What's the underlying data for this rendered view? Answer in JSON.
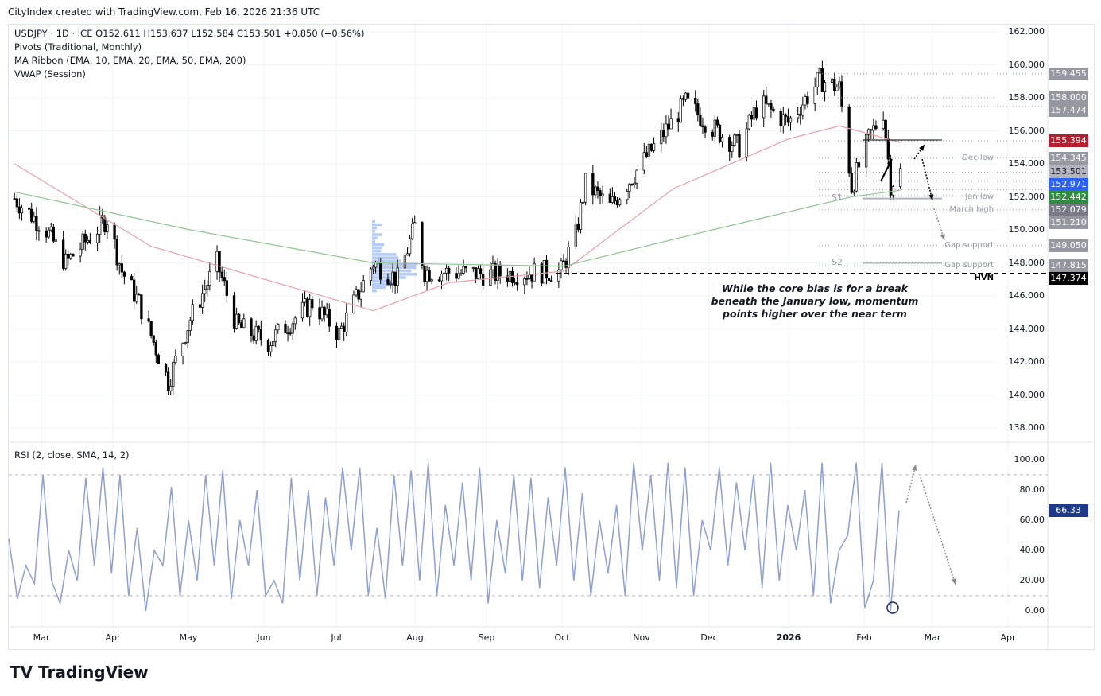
{
  "credit": "CityIndex created with TradingView.com, Feb 16, 2026 21:36 UTC",
  "legend": {
    "symbol_line": "USDJPY · 1D · ICE  O152.611  H153.637  L152.584  C153.501  +0.850 (+0.56%)",
    "pivots": "Pivots (Traditional, Monthly)",
    "ma_ribbon": "MA Ribbon (EMA, 10, EMA, 20, EMA, 50, EMA, 200)",
    "vwap": "VWAP (Session)",
    "rsi": "RSI (2, close, SMA, 14, 2)"
  },
  "annotation": "While the core bias is for a break beneath the January low, momentum points higher over the near term",
  "logo": "TradingView",
  "chart_data": [
    {
      "type": "candlestick",
      "symbol": "USDJPY",
      "interval": "1D",
      "ylim": [
        137,
        163
      ],
      "y_ticks": [
        "162.000",
        "160.000",
        "158.000",
        "156.000",
        "154.000",
        "152.000",
        "150.000",
        "148.000",
        "146.000",
        "144.000",
        "142.000",
        "140.000",
        "138.000"
      ],
      "x_ticks": [
        "Mar",
        "Apr",
        "May",
        "Jun",
        "Jul",
        "Aug",
        "Sep",
        "Oct",
        "Nov",
        "Dec",
        "2026",
        "Feb",
        "Mar",
        "Apr"
      ],
      "close_path": [
        [
          "2025-02-18",
          151.9
        ],
        [
          "2025-03-03",
          150.0
        ],
        [
          "2025-03-11",
          148.0
        ],
        [
          "2025-03-28",
          150.7
        ],
        [
          "2025-04-03",
          147.5
        ],
        [
          "2025-04-10",
          145.6
        ],
        [
          "2025-04-22",
          140.8
        ],
        [
          "2025-05-01",
          144.6
        ],
        [
          "2025-05-12",
          148.0
        ],
        [
          "2025-05-20",
          144.2
        ],
        [
          "2025-06-02",
          143.2
        ],
        [
          "2025-06-20",
          145.6
        ],
        [
          "2025-07-01",
          143.7
        ],
        [
          "2025-07-15",
          148.0
        ],
        [
          "2025-07-25",
          147.0
        ],
        [
          "2025-08-01",
          150.2
        ],
        [
          "2025-08-05",
          147.5
        ],
        [
          "2025-09-01",
          147.3
        ],
        [
          "2025-09-30",
          147.5
        ],
        [
          "2025-10-06",
          149.7
        ],
        [
          "2025-10-10",
          152.8
        ],
        [
          "2025-10-20",
          151.4
        ],
        [
          "2025-11-01",
          153.8
        ],
        [
          "2025-11-20",
          157.7
        ],
        [
          "2025-12-01",
          156.2
        ],
        [
          "2025-12-12",
          155.0
        ],
        [
          "2025-12-20",
          157.7
        ],
        [
          "2026-01-01",
          156.5
        ],
        [
          "2026-01-14",
          159.1
        ],
        [
          "2026-01-22",
          158.6
        ],
        [
          "2026-01-27",
          152.6
        ],
        [
          "2026-02-03",
          155.5
        ],
        [
          "2026-02-09",
          157.2
        ],
        [
          "2026-02-12",
          152.8
        ],
        [
          "2026-02-16",
          153.5
        ]
      ],
      "ema_red": [
        [
          "2025-02-18",
          154.0
        ],
        [
          "2025-04-15",
          149.0
        ],
        [
          "2025-07-15",
          145.1
        ],
        [
          "2025-08-15",
          146.8
        ],
        [
          "2025-10-01",
          147.5
        ],
        [
          "2025-11-15",
          152.5
        ],
        [
          "2026-01-01",
          155.5
        ],
        [
          "2026-01-22",
          156.3
        ],
        [
          "2026-02-16",
          155.3
        ]
      ],
      "ema_green": [
        [
          "2025-02-18",
          152.3
        ],
        [
          "2025-05-01",
          150.0
        ],
        [
          "2025-07-15",
          148.0
        ],
        [
          "2025-10-01",
          147.8
        ],
        [
          "2025-12-01",
          150.0
        ],
        [
          "2026-01-27",
          152.0
        ],
        [
          "2026-02-16",
          152.4
        ]
      ],
      "levels": [
        {
          "label": "",
          "value": "159.455"
        },
        {
          "label": "",
          "value": "158.000"
        },
        {
          "label": "",
          "value": "157.474"
        },
        {
          "label": "",
          "value": "155.394",
          "color": "#b2202f"
        },
        {
          "label": "Dec low",
          "value": "154.345"
        },
        {
          "label": "",
          "value": "153.501",
          "color": "#b2b5be",
          "text": "#131722"
        },
        {
          "label": "",
          "value": "152.971",
          "color": "#2962ff"
        },
        {
          "label": "Jan low",
          "value": "152.442",
          "color": "#2e8b40"
        },
        {
          "label": "March high",
          "value": "152.079",
          "color": "#787b86"
        },
        {
          "label": "",
          "value": "151.210"
        },
        {
          "label": "Gap support",
          "value": "149.050"
        },
        {
          "label": "Gap support",
          "value": "147.815"
        },
        {
          "label": "HVN",
          "value": "147.374",
          "color": "#000000"
        }
      ],
      "pivots": [
        {
          "label": "S1",
          "value": 151.9
        },
        {
          "label": "S2",
          "value": 148.0
        }
      ],
      "colors": {
        "up": "#ffffff",
        "down": "#000000",
        "ema_red": "#e8a0a8",
        "ema_green": "#8fc48f",
        "volume_profile": "#5b8def"
      }
    },
    {
      "type": "line",
      "name": "RSI",
      "ylim": [
        -5,
        110
      ],
      "y_ticks": [
        "100.00",
        "80.00",
        "60.00",
        "40.00",
        "20.00",
        "0.00"
      ],
      "last_value": "66.33",
      "color": "#8fa0d0",
      "bands": [
        10,
        90
      ],
      "values": [
        48,
        8,
        30,
        18,
        90,
        20,
        5,
        40,
        20,
        88,
        30,
        95,
        25,
        90,
        10,
        55,
        0,
        40,
        30,
        82,
        10,
        60,
        20,
        90,
        30,
        93,
        8,
        60,
        30,
        80,
        10,
        20,
        5,
        88,
        20,
        80,
        10,
        75,
        30,
        95,
        40,
        95,
        10,
        55,
        8,
        90,
        30,
        93,
        20,
        98,
        10,
        70,
        30,
        85,
        20,
        95,
        5,
        60,
        25,
        90,
        20,
        88,
        15,
        75,
        30,
        95,
        20,
        78,
        10,
        60,
        25,
        70,
        10,
        98,
        40,
        90,
        20,
        98,
        15,
        95,
        10,
        60,
        40,
        95,
        30,
        85,
        40,
        90,
        15,
        98,
        20,
        70,
        40,
        80,
        10,
        98,
        5,
        40,
        50,
        98,
        2,
        20,
        98,
        0,
        66.33
      ]
    }
  ]
}
